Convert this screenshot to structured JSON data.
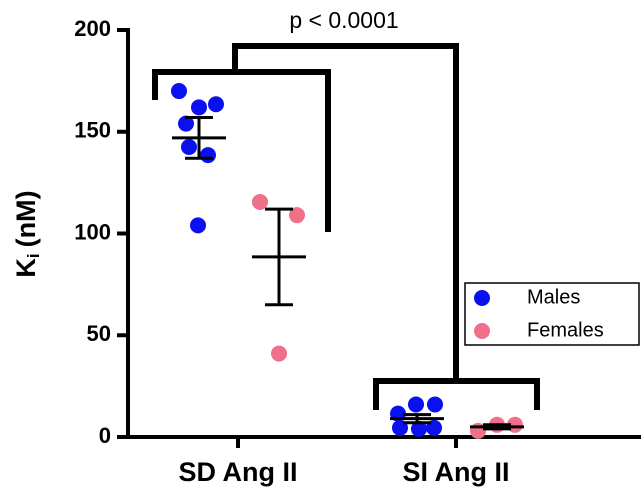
{
  "chart_data": {
    "type": "dot",
    "ylabel": "K",
    "ylabel_sub": "i",
    "ylabel_unit": "(nM)",
    "annotation": "p < 0.0001",
    "categories": [
      "SD Ang II",
      "SI Ang II"
    ],
    "ylim": [
      0,
      200
    ],
    "yticks": [
      0,
      50,
      100,
      150,
      200
    ],
    "legend": "right",
    "series": [
      {
        "name": "Males",
        "color": "#0a10f0",
        "values": [
          [
            170,
            162,
            163.5,
            154,
            142.5,
            138.5,
            104
          ],
          [
            11.5,
            4.5,
            16,
            16,
            4,
            4.5
          ]
        ],
        "mean": [
          147,
          9
        ],
        "sem": [
          10,
          2
        ]
      },
      {
        "name": "Females",
        "color": "#f0708a",
        "values": [
          [
            115.5,
            109,
            41
          ],
          [
            3,
            6,
            6
          ]
        ],
        "mean": [
          88.5,
          5
        ],
        "sem": [
          23.5,
          1
        ]
      }
    ]
  }
}
